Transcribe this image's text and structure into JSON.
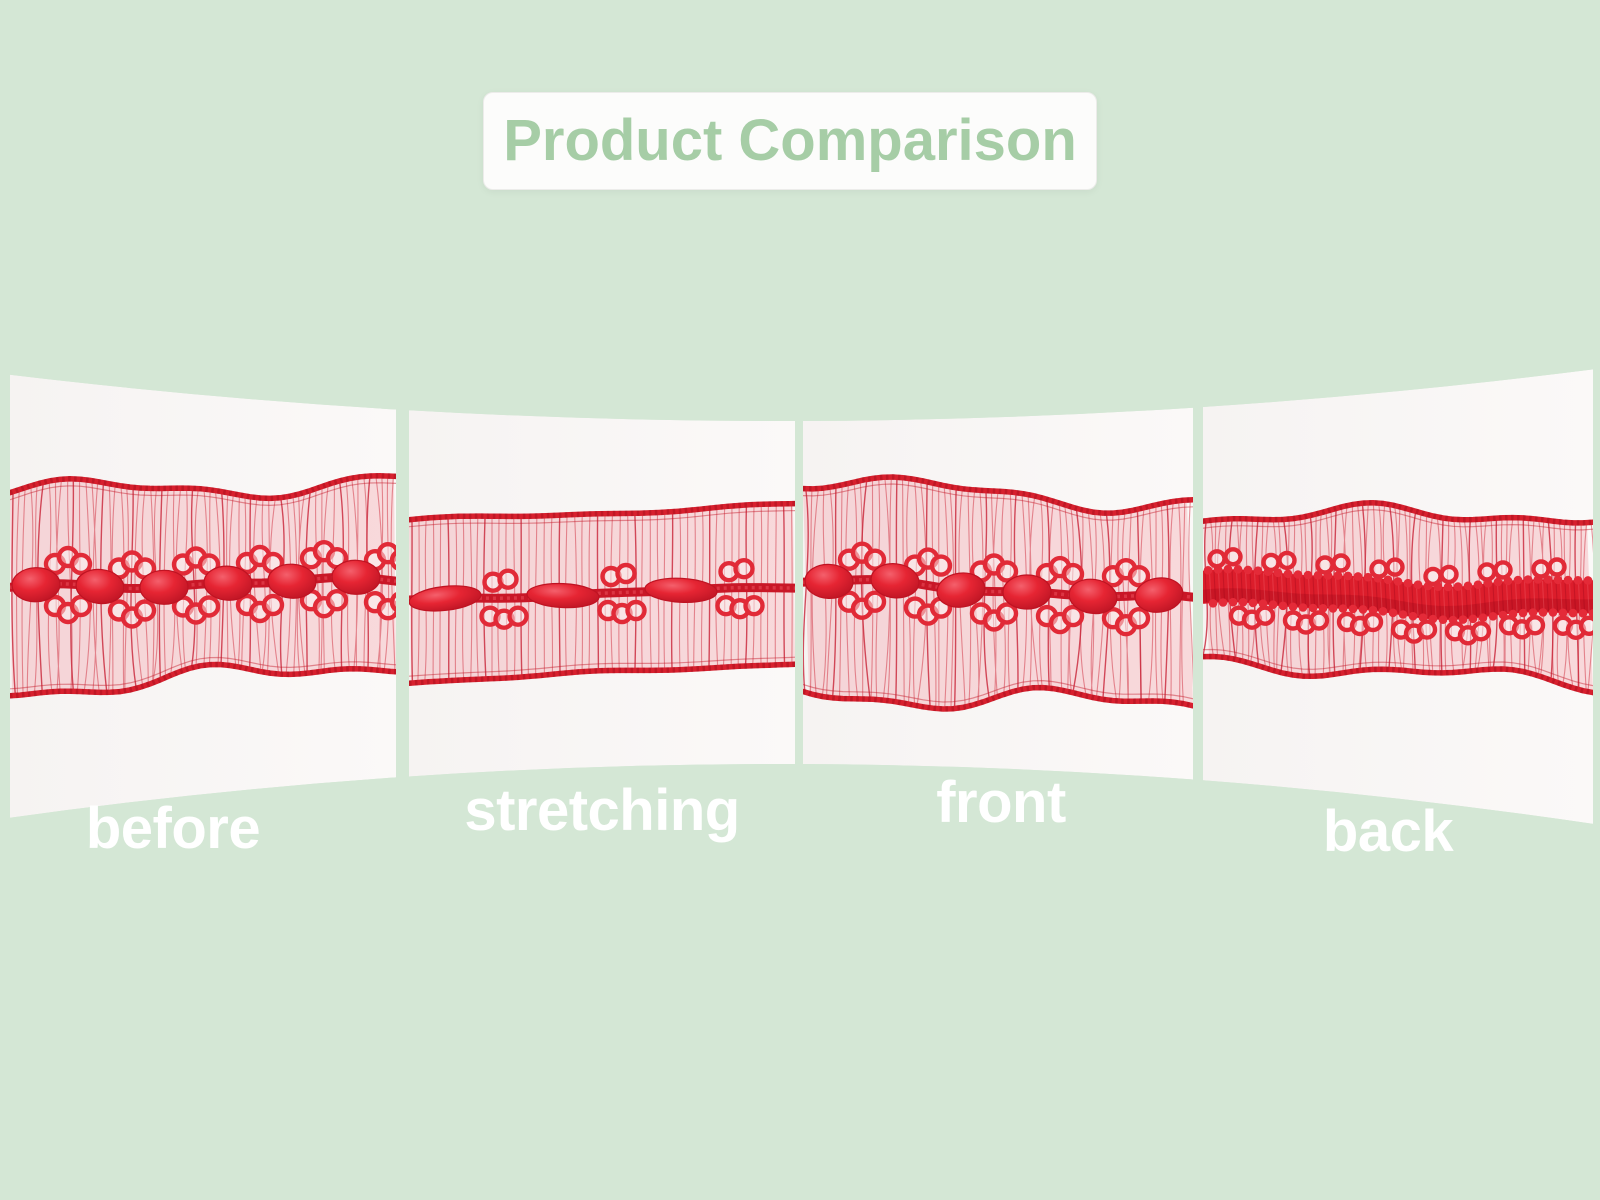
{
  "title": "Product Comparison",
  "panels": [
    {
      "label": "before",
      "render": "chain-ruffled"
    },
    {
      "label": "stretching",
      "render": "chain-stretched"
    },
    {
      "label": "front",
      "render": "chain-ruffled"
    },
    {
      "label": "back",
      "render": "braid-ruffled"
    }
  ],
  "colors": {
    "background": "#d4e7d5",
    "panel_bg": "#f8f6f5",
    "title_text": "#a6cda6",
    "title_box_bg": "#fcfcfb",
    "title_box_border": "#ececea",
    "label_text": "#ffffff",
    "lace_red": "#d7202e",
    "lace_bright": "#e62533",
    "lace_dark": "#b31020",
    "sheer_pink": "#f3a2ac"
  }
}
